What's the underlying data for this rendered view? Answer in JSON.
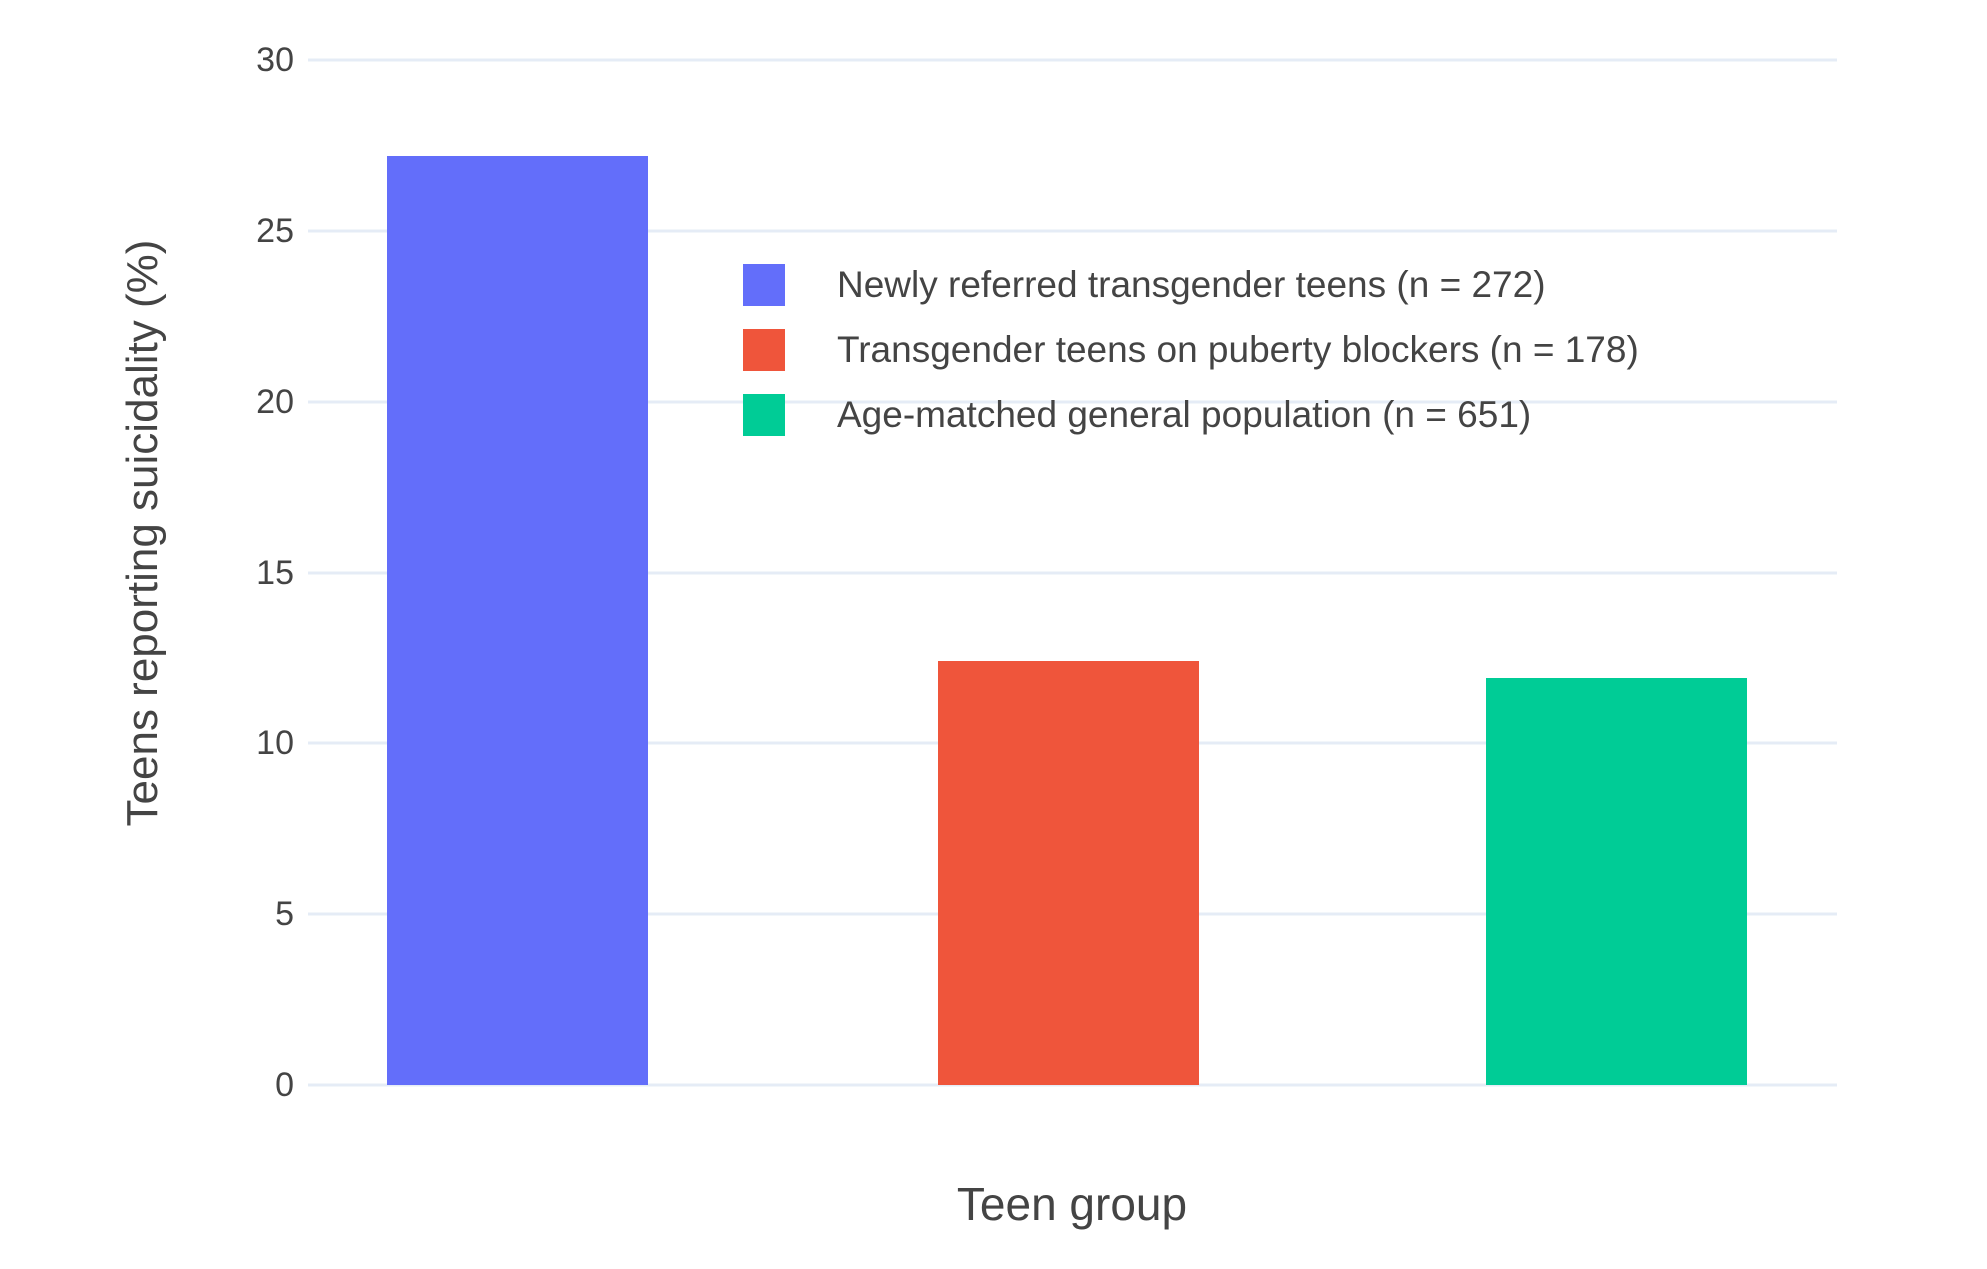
{
  "chart_data": {
    "type": "bar",
    "title": "",
    "xlabel": "Teen group",
    "ylabel": "Teens reporting suicidality (%)",
    "ylim": [
      0,
      30
    ],
    "yticks": [
      0,
      5,
      10,
      15,
      20,
      25,
      30
    ],
    "grid": true,
    "legend_position": "inside upper-center",
    "categories": [
      "Newly referred transgender teens (n = 272)",
      "Transgender teens on puberty blockers (n = 178)",
      "Age-matched general population (n = 651)"
    ],
    "values": [
      27.2,
      12.4,
      11.9
    ],
    "bar_colors": [
      "#636EFA",
      "#EF553B",
      "#00CC96"
    ],
    "legend": [
      {
        "label": "Newly referred transgender teens (n = 272)",
        "color": "#636EFA"
      },
      {
        "label": "Transgender teens on puberty blockers (n = 178)",
        "color": "#EF553B"
      },
      {
        "label": "Age-matched general population (n = 651)",
        "color": "#00CC96"
      }
    ],
    "layout_hints": {
      "bar_left_fractions": [
        0.0517,
        0.412,
        0.7705
      ],
      "bar_width_fraction": 0.1707
    }
  },
  "colors": {
    "background": "#FFFFFF",
    "gridline": "#E5ECF6",
    "text": "#444444"
  }
}
